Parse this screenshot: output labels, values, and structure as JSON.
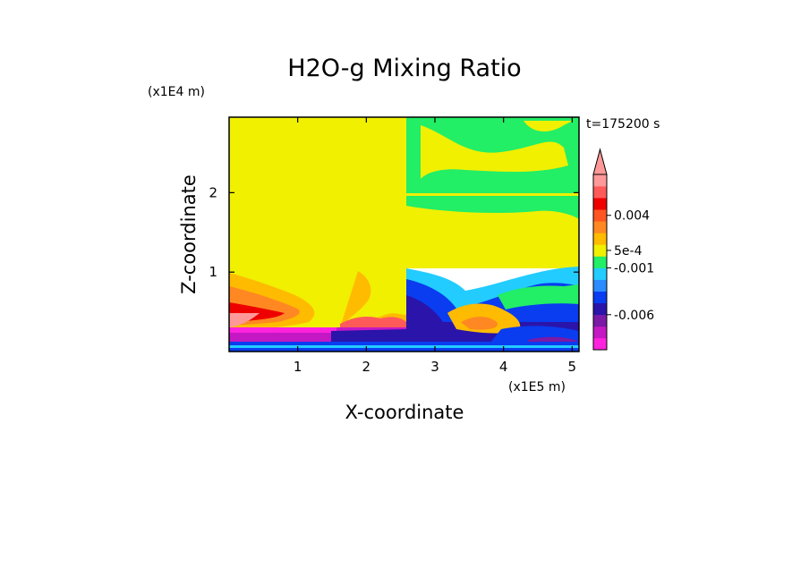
{
  "chart_data": {
    "type": "heatmap",
    "title": "H2O-g Mixing Ratio",
    "xlabel": "X-coordinate",
    "ylabel": "Z-coordinate",
    "x_unit": "(x1E5 m)",
    "y_unit": "(x1E4 m)",
    "time_label": "t=175200 s",
    "xlim": [
      0,
      5.1
    ],
    "ylim": [
      0,
      2.95
    ],
    "x_ticks": [
      "1",
      "2",
      "3",
      "4",
      "5"
    ],
    "x_tick_values": [
      1,
      2,
      3,
      4,
      5
    ],
    "y_ticks": [
      "1",
      "2"
    ],
    "y_tick_values": [
      1,
      2
    ],
    "colorbar": {
      "colors": [
        "#ff22dd",
        "#c418c4",
        "#7a1aa6",
        "#2a14aa",
        "#0a3cf0",
        "#2a8cff",
        "#22ccff",
        "#22ee66",
        "#f0f000",
        "#ffbb00",
        "#ff8822",
        "#ff5522",
        "#ee0000",
        "#ff5a5a",
        "#ff9999"
      ],
      "labels": [
        "-0.006",
        "-0.001",
        "5e-4",
        "0.004"
      ],
      "label_levels": [
        -0.006,
        -0.001,
        0.0005,
        0.004
      ],
      "extend_max": true
    },
    "regions": [
      {
        "name": "upper-left",
        "color": "#f0f000"
      },
      {
        "name": "upper-right",
        "color": "#22ee66"
      },
      {
        "name": "lower-right",
        "color": "#0a3cf0"
      },
      {
        "name": "surface-layer",
        "color": "#c418c4"
      }
    ]
  }
}
